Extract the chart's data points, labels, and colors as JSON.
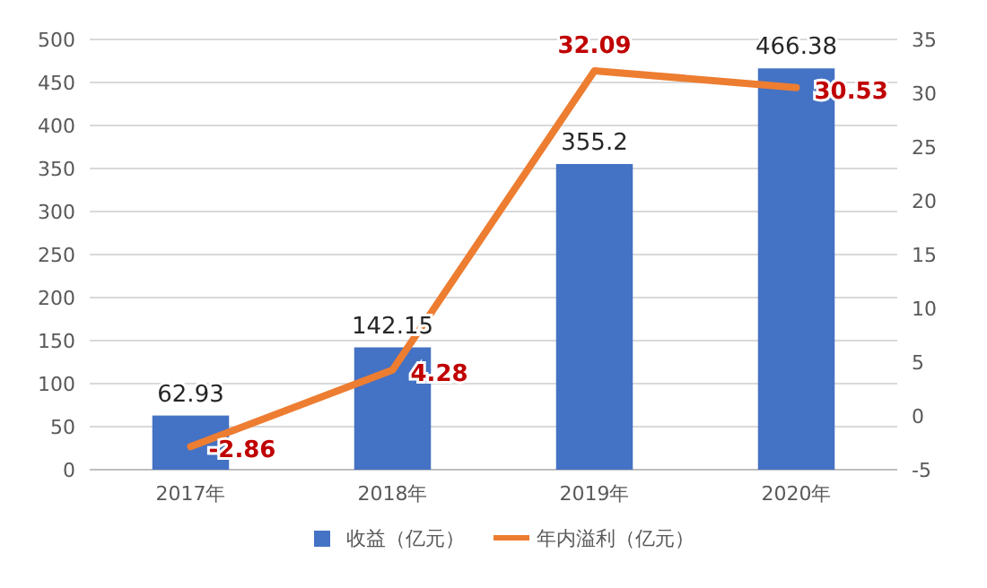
{
  "chart_data": {
    "type": "bar",
    "categories": [
      "2017年",
      "2018年",
      "2019年",
      "2020年"
    ],
    "series": [
      {
        "name": "收益（亿元）",
        "color": "#4472c4",
        "values": [
          62.93,
          142.15,
          355.2,
          466.38
        ]
      },
      {
        "name": "年内溢利（亿元）",
        "type": "line",
        "axis": "y2",
        "color": "#ed7d31",
        "values": [
          -2.86,
          4.28,
          32.09,
          30.53
        ]
      }
    ],
    "ylim": [
      0,
      500
    ],
    "yticks": [
      0,
      50,
      100,
      150,
      200,
      250,
      300,
      350,
      400,
      450,
      500
    ],
    "y2lim": [
      -5,
      35
    ],
    "y2ticks": [
      -5,
      0,
      5,
      10,
      15,
      20,
      25,
      30,
      35
    ],
    "grid": "y",
    "legend": "bottom",
    "data_labels": true,
    "marker": "none",
    "line_style": "solid"
  }
}
